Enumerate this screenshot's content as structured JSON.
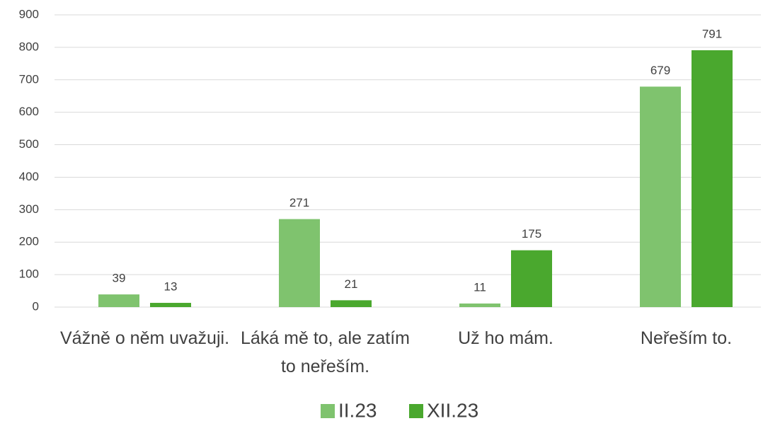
{
  "chart_data": {
    "type": "bar",
    "categories": [
      "Vážně o něm uvažuji.",
      "Láká mě to, ale zatím to neřeším.",
      "Už ho mám.",
      "Neřeším to."
    ],
    "series": [
      {
        "name": "II.23",
        "color": "#7fc36e",
        "values": [
          39,
          271,
          11,
          679
        ]
      },
      {
        "name": "XII.23",
        "color": "#4aa82e",
        "values": [
          13,
          21,
          175,
          791
        ]
      }
    ],
    "ylim": [
      0,
      900
    ],
    "yticks": [
      0,
      100,
      200,
      300,
      400,
      500,
      600,
      700,
      800,
      900
    ],
    "grid": true,
    "legend": "bottom"
  }
}
